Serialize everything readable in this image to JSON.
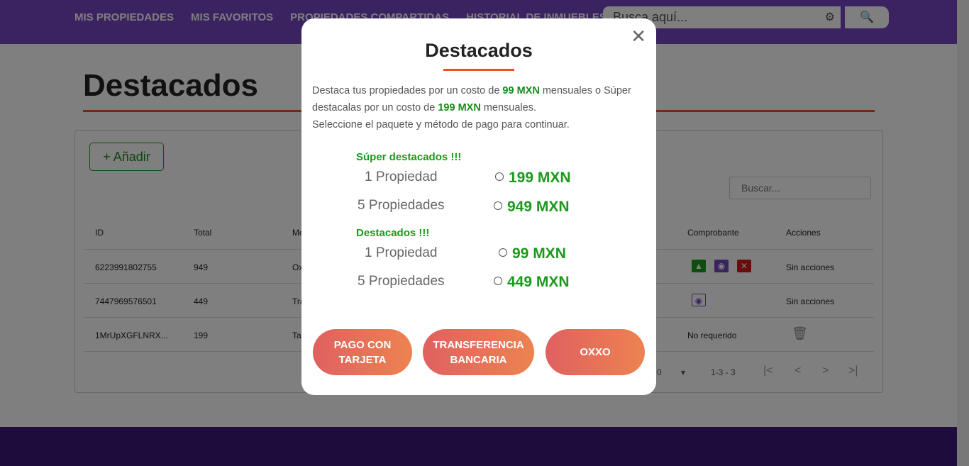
{
  "nav": {
    "items": [
      "MIS PROPIEDADES",
      "MIS FAVORITOS",
      "PROPIEDADES COMPARTIDAS",
      "HISTORIAL DE INMUEBLES"
    ],
    "search_placeholder": "Busca aquí..."
  },
  "page": {
    "title": "Destacados",
    "add_label": "+ Añadir",
    "search_placeholder": "Buscar..."
  },
  "table": {
    "headers": [
      "ID",
      "Total",
      "Me",
      "Comprobante",
      "Acciones"
    ],
    "rows": [
      {
        "id": "6223991802755",
        "total": "949",
        "method": "Ox",
        "receipt": "",
        "action": "Sin acciones"
      },
      {
        "id": "7447969576501",
        "total": "449",
        "method": "Tra",
        "receipt": "",
        "action": "Sin acciones"
      },
      {
        "id": "1MrUpXGFLNRX...",
        "total": "199",
        "method": "Ta",
        "receipt": "No requerido",
        "action": ""
      }
    ]
  },
  "pagination": {
    "per_page": "0",
    "range": "1-3 - 3"
  },
  "modal": {
    "title": "Destacados",
    "desc": {
      "p1": "Destaca tus propiedades por un costo de ",
      "p1b": "99 MXN",
      "p2": " mensuales o Súper destacalas por un costo de ",
      "p2b": "199 MXN",
      "p3": " mensuales.",
      "p4": "Seleccione el paquete y método de pago para continuar."
    },
    "super": {
      "label": "Súper destacados !!!",
      "options": [
        {
          "label": "1 Propiedad",
          "price": "199 MXN"
        },
        {
          "label": "5 Propiedades",
          "price": "949 MXN"
        }
      ]
    },
    "normal": {
      "label": "Destacados !!!",
      "options": [
        {
          "label": "1 Propiedad",
          "price": "99 MXN"
        },
        {
          "label": "5 Propiedades",
          "price": "449 MXN"
        }
      ]
    },
    "buttons": [
      "PAGO CON TARJETA",
      "TRANSFERENCIA BANCARIA",
      "OXXO"
    ]
  },
  "colors": {
    "header": "#7446c0",
    "accent": "#e8541c",
    "green": "#1a9a1a"
  }
}
